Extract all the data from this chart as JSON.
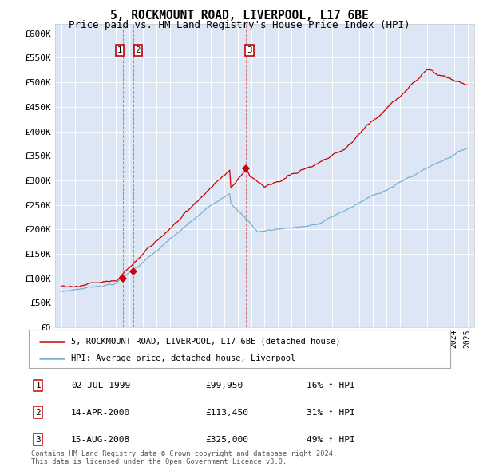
{
  "title": "5, ROCKMOUNT ROAD, LIVERPOOL, L17 6BE",
  "subtitle": "Price paid vs. HM Land Registry's House Price Index (HPI)",
  "ylabel_ticks": [
    "£0",
    "£50K",
    "£100K",
    "£150K",
    "£200K",
    "£250K",
    "£300K",
    "£350K",
    "£400K",
    "£450K",
    "£500K",
    "£550K",
    "£600K"
  ],
  "ytick_values": [
    0,
    50000,
    100000,
    150000,
    200000,
    250000,
    300000,
    350000,
    400000,
    450000,
    500000,
    550000,
    600000
  ],
  "plot_bg_color": "#dce6f5",
  "red_line_color": "#cc0000",
  "blue_line_color": "#7bafd4",
  "sale1": {
    "date": 1999.5,
    "price": 99950
  },
  "sale2": {
    "date": 2000.29,
    "price": 113450
  },
  "sale3": {
    "date": 2008.62,
    "price": 325000
  },
  "legend_entries": [
    "5, ROCKMOUNT ROAD, LIVERPOOL, L17 6BE (detached house)",
    "HPI: Average price, detached house, Liverpool"
  ],
  "table_rows": [
    [
      "1",
      "02-JUL-1999",
      "£99,950",
      "16% ↑ HPI"
    ],
    [
      "2",
      "14-APR-2000",
      "£113,450",
      "31% ↑ HPI"
    ],
    [
      "3",
      "15-AUG-2008",
      "£325,000",
      "49% ↑ HPI"
    ]
  ],
  "footer": "Contains HM Land Registry data © Crown copyright and database right 2024.\nThis data is licensed under the Open Government Licence v3.0.",
  "title_fontsize": 10.5,
  "subtitle_fontsize": 9,
  "tick_fontsize": 8,
  "xlim": [
    1994.5,
    2025.5
  ],
  "ylim": [
    0,
    620000
  ]
}
